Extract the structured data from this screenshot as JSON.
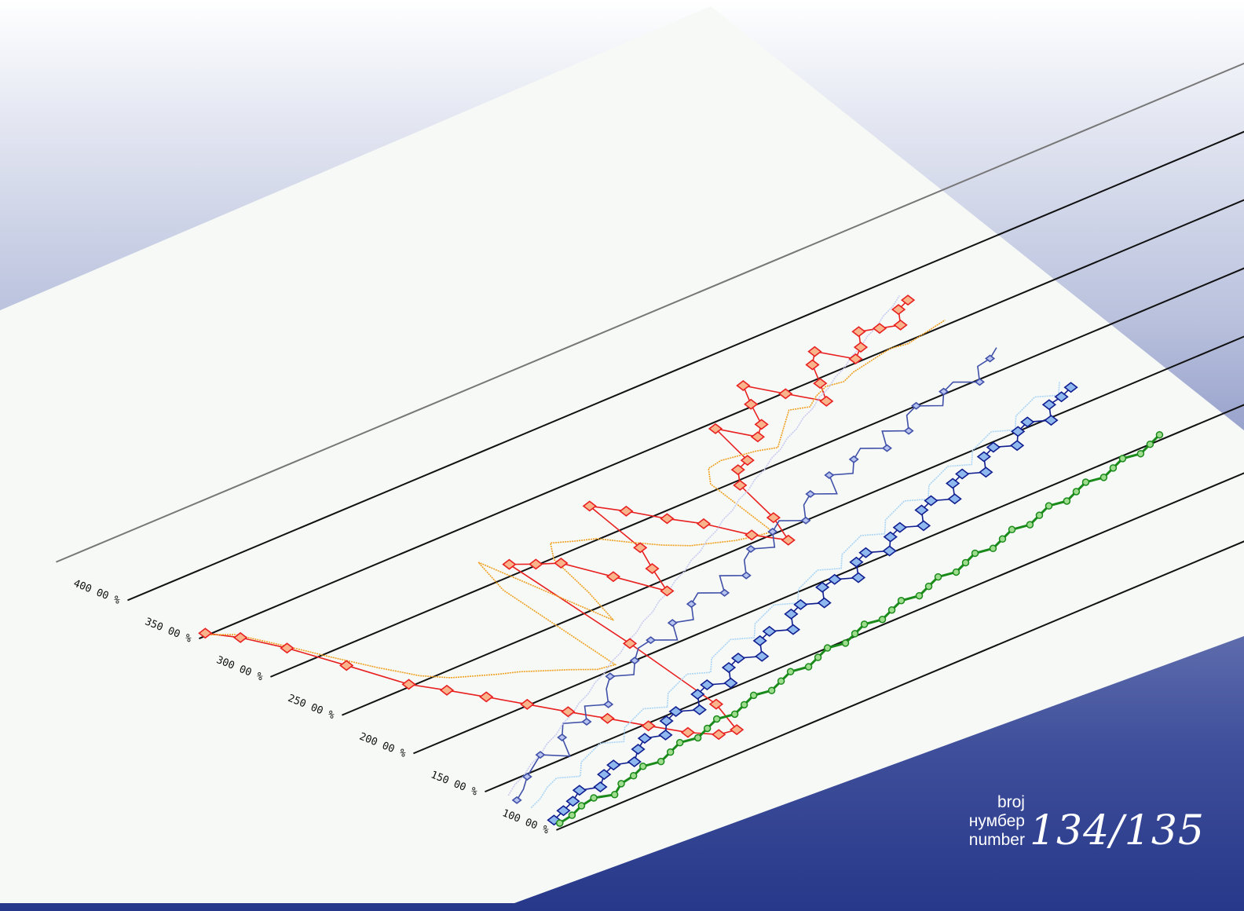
{
  "issue": {
    "labels": [
      "broj",
      "нумбер",
      "number"
    ],
    "number": "134/135"
  },
  "chart_data": {
    "type": "line",
    "title": "",
    "xlabel": "",
    "ylabel": "",
    "ylim": [
      100,
      400
    ],
    "yticks": [
      "100 00 %",
      "150 00 %",
      "200 00 %",
      "250 00 %",
      "300 00 %",
      "350 00 %",
      "400 00 %"
    ],
    "ytick_values": [
      100,
      150,
      200,
      250,
      300,
      350,
      400
    ],
    "grid": true,
    "legend": "none",
    "perspective": "isometric",
    "x": [
      1,
      2,
      3,
      4,
      5,
      6,
      7,
      8,
      9,
      10,
      11,
      12,
      13,
      14,
      15,
      16,
      17,
      18,
      19,
      20,
      21,
      22,
      23,
      24,
      25,
      26,
      27,
      28,
      29,
      30,
      31,
      32,
      33,
      34,
      35,
      36,
      37,
      38,
      39,
      40,
      41,
      42,
      43,
      44,
      45,
      46,
      47,
      48,
      49,
      50
    ],
    "series": [
      {
        "color": "#e82020",
        "marker": "square-filled",
        "markerFill": "#f9b48c",
        "values": [
          352,
          338,
          316,
          285,
          252,
          236,
          219,
          201,
          183,
          166,
          148,
          131,
          120,
          118,
          143,
          214,
          309,
          301,
          294,
          268,
          241,
          262,
          281,
          327,
          312,
          294,
          279,
          256,
          241,
          262,
          296,
          308,
          312,
          345,
          326,
          334,
          352,
          368,
          349,
          331,
          346,
          362,
          371,
          353,
          360,
          372,
          368,
          364,
          376,
          380
        ]
      },
      {
        "color": "#f0a020",
        "marker": "none",
        "values": [
          350,
          342,
          320,
          296,
          274,
          255,
          244,
          238,
          232,
          227,
          220,
          213,
          205,
          203,
          292,
          320,
          236,
          264,
          299,
          312,
          306,
          301,
          288,
          276,
          267,
          262,
          257,
          254,
          252,
          306,
          318,
          320,
          318,
          316,
          312,
          320,
          328,
          336,
          332,
          338,
          342,
          340,
          344,
          346,
          348,
          350,
          348,
          350,
          352,
          354
        ]
      },
      {
        "color": "#4050a8",
        "marker": "diamond-small",
        "markerFill": "#b8c4f0",
        "values": [
          134,
          140,
          148,
          154,
          160,
          150,
          166,
          176,
          170,
          182,
          176,
          188,
          196,
          190,
          200,
          208,
          210,
          202,
          216,
          212,
          224,
          230,
          222,
          236,
          228,
          240,
          246,
          240,
          252,
          258,
          250,
          262,
          268,
          260,
          276,
          270,
          280,
          286,
          278,
          292,
          284,
          296,
          300,
          292,
          302,
          306,
          298,
          310,
          312,
          318
        ]
      },
      {
        "color": "#101e90",
        "marker": "square-filled",
        "markerFill": "#8fb8ee",
        "values": [
          108,
          112,
          116,
          122,
          118,
          126,
          130,
          126,
          134,
          140,
          136,
          146,
          150,
          144,
          156,
          160,
          154,
          166,
          170,
          164,
          176,
          180,
          174,
          186,
          190,
          184,
          196,
          198,
          192,
          204,
          208,
          202,
          212,
          216,
          210,
          222,
          226,
          220,
          232,
          236,
          230,
          242,
          246,
          240,
          250,
          254,
          248,
          260,
          262,
          266
        ]
      },
      {
        "color": "#a9d4f5",
        "marker": "none",
        "values": [
          124,
          128,
          134,
          138,
          132,
          142,
          146,
          150,
          144,
          154,
          158,
          162,
          156,
          166,
          170,
          174,
          168,
          178,
          182,
          186,
          180,
          190,
          194,
          198,
          192,
          202,
          206,
          210,
          204,
          214,
          218,
          222,
          216,
          226,
          230,
          234,
          228,
          238,
          242,
          246,
          240,
          250,
          254,
          258,
          252,
          262,
          266,
          270,
          264,
          274
        ]
      },
      {
        "color": "#1a8a1a",
        "marker": "circle-filled",
        "markerFill": "#9edc8e",
        "values": [
          104,
          106,
          110,
          112,
          108,
          114,
          116,
          120,
          118,
          122,
          126,
          124,
          128,
          132,
          130,
          134,
          138,
          136,
          140,
          144,
          142,
          146,
          150,
          148,
          152,
          156,
          154,
          158,
          162,
          160,
          164,
          168,
          166,
          170,
          174,
          172,
          176,
          180,
          178,
          182,
          186,
          184,
          188,
          192,
          190,
          194,
          198,
          196,
          200,
          204
        ]
      },
      {
        "color": "#c8ccf0",
        "marker": "none",
        "values": [
          140,
          146,
          150,
          156,
          160,
          166,
          170,
          176,
          180,
          186,
          190,
          196,
          200,
          206,
          210,
          216,
          220,
          226,
          230,
          236,
          240,
          246,
          250,
          256,
          260,
          266,
          270,
          276,
          280,
          286,
          290,
          296,
          300,
          306,
          310,
          316,
          320,
          326,
          330,
          336,
          340,
          346,
          350,
          356,
          360,
          366,
          370,
          376,
          380,
          386
        ]
      }
    ]
  }
}
